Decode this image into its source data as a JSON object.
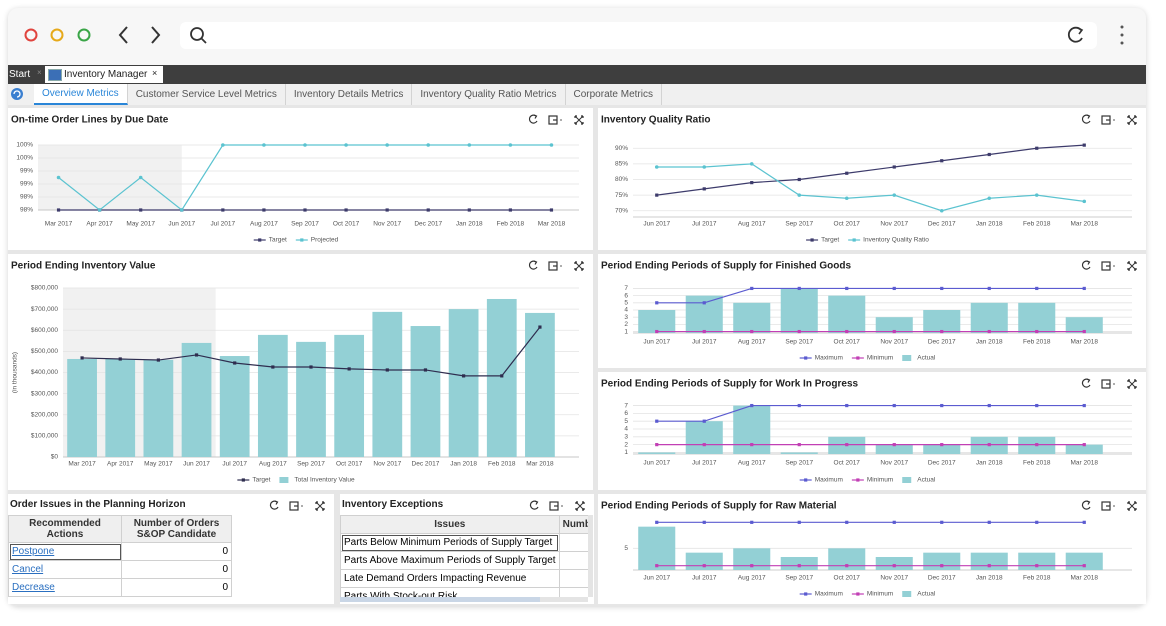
{
  "app_tabs": [
    "Start",
    "Inventory Manager"
  ],
  "tabs": [
    "Overview Metrics",
    "Customer Service Level Metrics",
    "Inventory Details Metrics",
    "Inventory Quality Ratio Metrics",
    "Corporate Metrics"
  ],
  "chart_data": [
    {
      "type": "line",
      "title": "On-time Order Lines by Due Date",
      "categories": [
        "Mar 2017",
        "Apr 2017",
        "May 2017",
        "Jun 2017",
        "Jul 2017",
        "Aug 2017",
        "Sep 2017",
        "Oct 2017",
        "Nov 2017",
        "Dec 2017",
        "Jan 2018",
        "Feb 2018",
        "Mar 2018"
      ],
      "series": [
        {
          "name": "Target",
          "color": "#3d3b6b",
          "marker": "square",
          "values": [
            98,
            98,
            98,
            98,
            98,
            98,
            98,
            98,
            98,
            98,
            98,
            98,
            98
          ]
        },
        {
          "name": "Projected",
          "color": "#5bc3d0",
          "marker": "circle",
          "values": [
            99,
            98,
            99,
            98,
            100,
            100,
            100,
            100,
            100,
            100,
            100,
            100,
            100
          ]
        }
      ],
      "ylim": [
        98,
        100
      ],
      "yticks": [
        {
          "value": 98,
          "label": "98%"
        },
        {
          "value": 98.4,
          "label": "98%"
        },
        {
          "value": 98.8,
          "label": "99%"
        },
        {
          "value": 99.2,
          "label": "99%"
        },
        {
          "value": 99.6,
          "label": "100%"
        },
        {
          "value": 100,
          "label": "100%"
        }
      ],
      "grid": true,
      "legend": "bottom"
    },
    {
      "type": "line",
      "title": "Inventory Quality Ratio",
      "categories": [
        "Jun 2017",
        "Jul 2017",
        "Aug 2017",
        "Sep 2017",
        "Oct 2017",
        "Nov 2017",
        "Dec 2017",
        "Jan 2018",
        "Feb 2018",
        "Mar 2018"
      ],
      "series": [
        {
          "name": "Target",
          "color": "#3d3b6b",
          "marker": "square",
          "values": [
            75,
            77,
            79,
            80,
            82,
            84,
            86,
            88,
            90,
            91
          ]
        },
        {
          "name": "Inventory Quality Ratio",
          "color": "#5bc3d0",
          "marker": "circle",
          "values": [
            84,
            84,
            85,
            75,
            74,
            75,
            70,
            74,
            75,
            73
          ]
        }
      ],
      "ylim": [
        68,
        92
      ],
      "yticks": [
        {
          "value": 70,
          "label": "70%"
        },
        {
          "value": 75,
          "label": "75%"
        },
        {
          "value": 80,
          "label": "80%"
        },
        {
          "value": 85,
          "label": "85%"
        },
        {
          "value": 90,
          "label": "90%"
        }
      ],
      "grid": true,
      "legend": "bottom"
    },
    {
      "type": "combo",
      "title": "Period Ending Inventory Value",
      "y_label": "(in thousands)",
      "categories": [
        "Mar 2017",
        "Apr 2017",
        "May 2017",
        "Jun 2017",
        "Jul 2017",
        "Aug 2017",
        "Sep 2017",
        "Oct 2017",
        "Nov 2017",
        "Dec 2017",
        "Jan 2018",
        "Feb 2018",
        "Mar 2018"
      ],
      "series": [
        {
          "name": "Target",
          "type": "line",
          "color": "#2f2d4f",
          "marker": "square",
          "values": [
            469000,
            464000,
            459000,
            483000,
            445000,
            426000,
            426000,
            417000,
            412000,
            412000,
            384000,
            384000,
            615000
          ]
        },
        {
          "name": "Total Inventory Value",
          "type": "bar",
          "color": "#93d0d5",
          "values": [
            464000,
            464000,
            460000,
            540000,
            478000,
            578000,
            545000,
            578000,
            687000,
            620000,
            700000,
            748000,
            682000
          ]
        }
      ],
      "ylim": [
        0,
        800000
      ],
      "yticks": [
        {
          "value": 0,
          "label": "$0"
        },
        {
          "value": 100000,
          "label": "$100,000"
        },
        {
          "value": 200000,
          "label": "$200,000"
        },
        {
          "value": 300000,
          "label": "$300,000"
        },
        {
          "value": 400000,
          "label": "$400,000"
        },
        {
          "value": 500000,
          "label": "$500,000"
        },
        {
          "value": 600000,
          "label": "$600,000"
        },
        {
          "value": 700000,
          "label": "$700,000"
        },
        {
          "value": 800000,
          "label": "$800,000"
        }
      ],
      "grid": true,
      "legend": "bottom"
    },
    {
      "type": "combo",
      "title": "Period Ending Periods of Supply for Finished Goods",
      "categories": [
        "Jun 2017",
        "Jul 2017",
        "Aug 2017",
        "Sep 2017",
        "Oct 2017",
        "Nov 2017",
        "Dec 2017",
        "Jan 2018",
        "Feb 2018",
        "Mar 2018"
      ],
      "series": [
        {
          "name": "Maximum",
          "type": "line",
          "color": "#5b5bd0",
          "marker": "square",
          "values": [
            5,
            5,
            7,
            7,
            7,
            7,
            7,
            7,
            7,
            7
          ]
        },
        {
          "name": "Minimum",
          "type": "line",
          "color": "#c23fb5",
          "marker": "square",
          "values": [
            1,
            1,
            1,
            1,
            1,
            1,
            1,
            1,
            1,
            1
          ]
        },
        {
          "name": "Actual",
          "type": "bar",
          "color": "#93d0d5",
          "values": [
            4,
            6,
            5,
            7,
            6,
            3,
            4,
            5,
            5,
            3
          ]
        }
      ],
      "ylim": [
        0.8,
        7.2
      ],
      "yticks": [
        1,
        2,
        3,
        4,
        5,
        6,
        7
      ],
      "grid": true,
      "legend": "bottom"
    },
    {
      "type": "combo",
      "title": "Period Ending Periods of Supply for Work In Progress",
      "categories": [
        "Jun 2017",
        "Jul 2017",
        "Aug 2017",
        "Sep 2017",
        "Oct 2017",
        "Nov 2017",
        "Dec 2017",
        "Jan 2018",
        "Feb 2018",
        "Mar 2018"
      ],
      "series": [
        {
          "name": "Maximum",
          "type": "line",
          "color": "#5b5bd0",
          "marker": "square",
          "values": [
            5,
            5,
            7,
            7,
            7,
            7,
            7,
            7,
            7,
            7
          ]
        },
        {
          "name": "Minimum",
          "type": "line",
          "color": "#c23fb5",
          "marker": "square",
          "values": [
            2,
            2,
            2,
            2,
            2,
            2,
            2,
            2,
            2,
            2
          ]
        },
        {
          "name": "Actual",
          "type": "bar",
          "color": "#93d0d5",
          "values": [
            1,
            5,
            7,
            1,
            3,
            2,
            2,
            3,
            3,
            2
          ]
        }
      ],
      "ylim": [
        0.8,
        7.2
      ],
      "yticks": [
        1,
        2,
        3,
        4,
        5,
        6,
        7
      ],
      "grid": true,
      "legend": "bottom"
    },
    {
      "type": "combo",
      "title": "Period Ending Periods of Supply for Raw Material",
      "categories": [
        "Jun 2017",
        "Jul 2017",
        "Aug 2017",
        "Sep 2017",
        "Oct 2017",
        "Nov 2017",
        "Dec 2017",
        "Jan 2018",
        "Feb 2018",
        "Mar 2018"
      ],
      "series": [
        {
          "name": "Maximum",
          "type": "line",
          "color": "#5b5bd0",
          "marker": "square",
          "values": [
            11,
            11,
            11,
            11,
            11,
            11,
            11,
            11,
            11,
            11
          ]
        },
        {
          "name": "Minimum",
          "type": "line",
          "color": "#c23fb5",
          "marker": "square",
          "values": [
            1,
            1,
            1,
            1,
            1,
            1,
            1,
            1,
            1,
            1
          ]
        },
        {
          "name": "Actual",
          "type": "bar",
          "color": "#93d0d5",
          "values": [
            10,
            4,
            5,
            3,
            5,
            3,
            4,
            4,
            4,
            4
          ]
        }
      ],
      "ylim": [
        0,
        12
      ],
      "yticks": [
        5
      ],
      "grid": true,
      "legend": "bottom"
    }
  ],
  "tables": [
    {
      "title": "Order Issues in the Planning Horizon",
      "columns": [
        "Recommended Actions",
        "Number of Orders S&OP Candidate"
      ],
      "rows": [
        [
          "Postpone",
          0
        ],
        [
          "Cancel",
          0
        ],
        [
          "Decrease",
          0
        ]
      ]
    },
    {
      "title": "Inventory Exceptions",
      "columns": [
        "Issues",
        "Numb"
      ],
      "rows": [
        [
          "Parts Below Minimum Periods of Supply Target"
        ],
        [
          "Parts Above Maximum Periods of Supply Target"
        ],
        [
          "Late Demand Orders Impacting Revenue"
        ],
        [
          "Parts With Stock-out Risk"
        ]
      ]
    }
  ]
}
